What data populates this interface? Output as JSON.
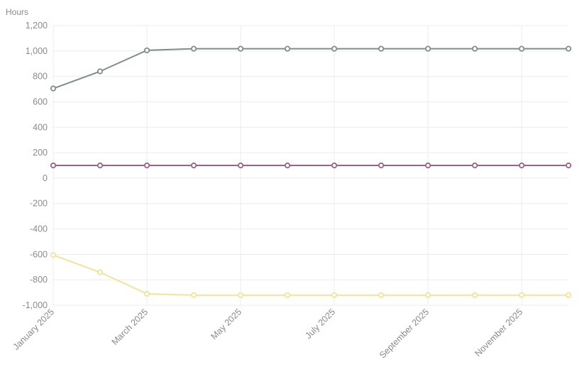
{
  "chart_data": {
    "type": "line",
    "ylabel": "Hours",
    "xlabel": "",
    "ylim": [
      -1000,
      1200
    ],
    "yticks": [
      1200,
      1000,
      800,
      600,
      400,
      200,
      0,
      -200,
      -400,
      -600,
      -800,
      -1000
    ],
    "ytick_labels": [
      "1,200",
      "1,000",
      "800",
      "600",
      "400",
      "200",
      "0",
      "-200",
      "-400",
      "-600",
      "-800",
      "-1,000"
    ],
    "x": [
      "January 2025",
      "February 2025",
      "March 2025",
      "April 2025",
      "May 2025",
      "June 2025",
      "July 2025",
      "August 2025",
      "September 2025",
      "October 2025",
      "November 2025",
      "December 2025"
    ],
    "xtick_labels": [
      "January 2025",
      "",
      "March 2025",
      "",
      "May 2025",
      "",
      "July 2025",
      "",
      "September 2025",
      "",
      "November 2025",
      ""
    ],
    "grid": true,
    "series": [
      {
        "color": "#7d8f87",
        "values": [
          705,
          840,
          1005,
          1018,
          1018,
          1018,
          1018,
          1018,
          1018,
          1018,
          1018,
          1018
        ]
      },
      {
        "color": "#9b6388",
        "values": [
          100,
          100,
          100,
          100,
          100,
          100,
          100,
          100,
          100,
          100,
          100,
          100
        ]
      },
      {
        "color": "#f3e39a",
        "values": [
          -605,
          -740,
          -910,
          -920,
          -920,
          -920,
          -920,
          -920,
          -920,
          -920,
          -920,
          -920
        ]
      }
    ]
  }
}
